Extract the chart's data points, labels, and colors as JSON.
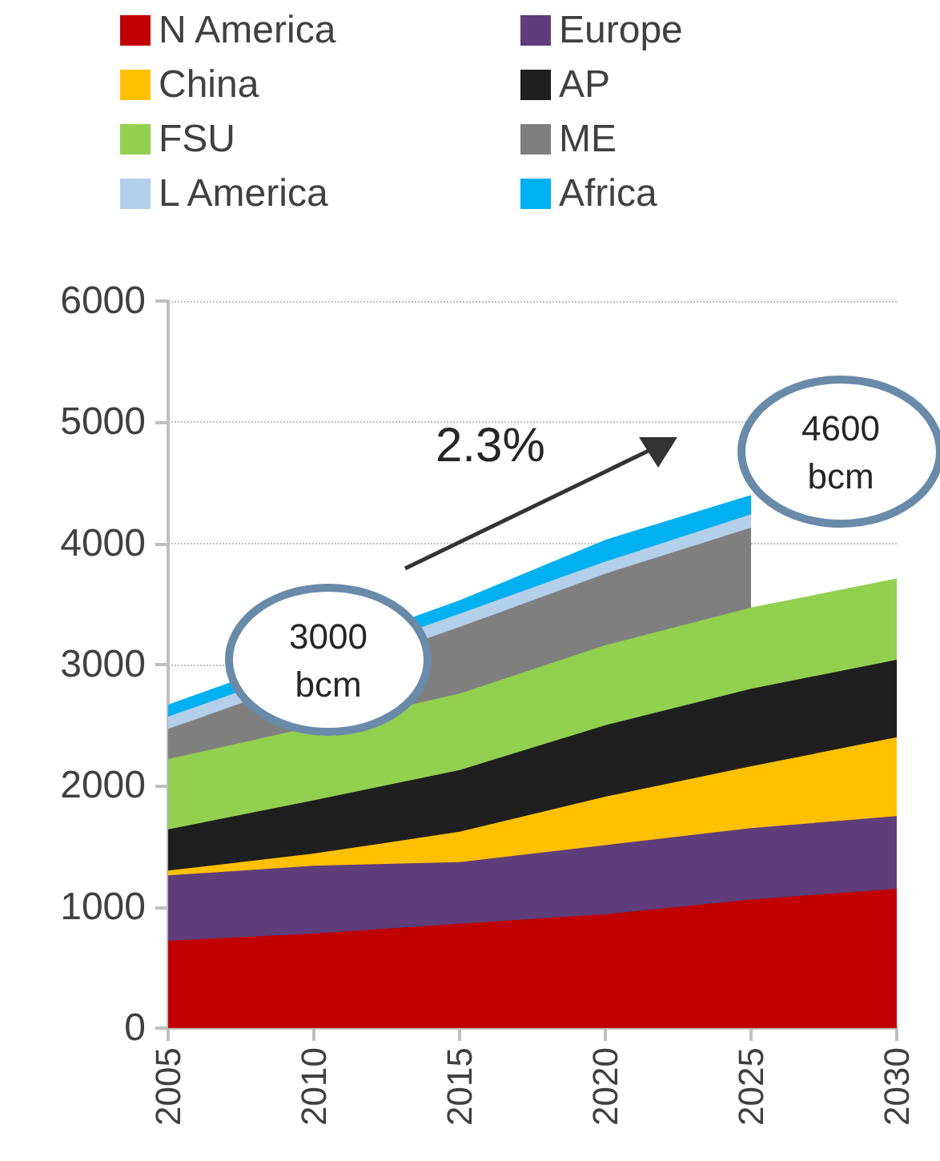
{
  "chart_data": {
    "type": "area",
    "stacked": true,
    "x": [
      2005,
      2010,
      2015,
      2020,
      2025,
      2030
    ],
    "series": [
      {
        "name": "N America",
        "color": "#c00000",
        "values": [
          720,
          780,
          860,
          940,
          1060,
          1150
        ]
      },
      {
        "name": "Europe",
        "color": "#5f3c7a",
        "values": [
          540,
          560,
          510,
          570,
          590,
          600
        ]
      },
      {
        "name": "China",
        "color": "#ffc000",
        "values": [
          40,
          100,
          250,
          400,
          510,
          650
        ]
      },
      {
        "name": "AP",
        "color": "#1f1f1f",
        "values": [
          340,
          440,
          510,
          590,
          640,
          640
        ]
      },
      {
        "name": "FSU",
        "color": "#92d050",
        "values": [
          580,
          null,
          630,
          660,
          670,
          670
        ]
      },
      {
        "name": "ME",
        "color": "#7f7f7f",
        "values": [
          250,
          null,
          550,
          590,
          660,
          null
        ]
      },
      {
        "name": "L America",
        "color": "#b4cfea",
        "values": [
          100,
          null,
          110,
          100,
          110,
          null
        ]
      },
      {
        "name": "Africa",
        "color": "#00b0f0",
        "values": [
          100,
          null,
          110,
          180,
          160,
          null
        ]
      }
    ],
    "xlim": [
      2005,
      2030
    ],
    "xticks": [
      2005,
      2010,
      2015,
      2020,
      2025,
      2030
    ],
    "ylim": [
      0,
      6000
    ],
    "yticks": [
      0,
      1000,
      2000,
      3000,
      4000,
      5000,
      6000
    ],
    "grid": "y",
    "legend": "top",
    "annotations": [
      "2.3%",
      "3000\nbcm",
      "4600\nbcm"
    ]
  }
}
